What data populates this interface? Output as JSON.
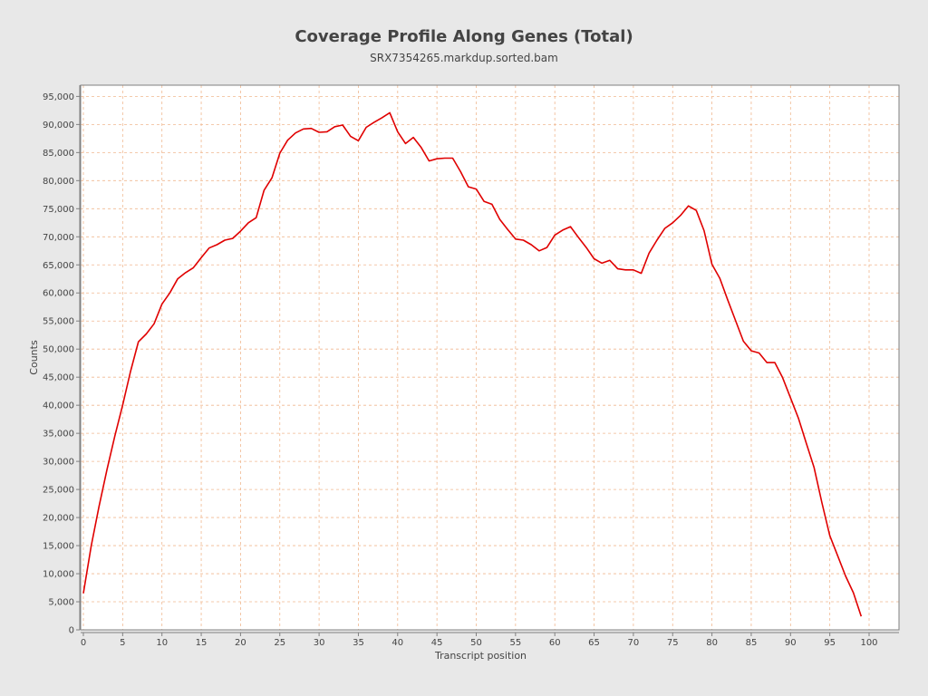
{
  "chart_data": {
    "type": "line",
    "title": "Coverage Profile Along Genes (Total)",
    "subtitle": "SRX7354265.markdup.sorted.bam",
    "xlabel": "Transcript position",
    "ylabel": "Counts",
    "xlim": [
      0,
      104
    ],
    "ylim": [
      0,
      97000
    ],
    "x_ticks": [
      0,
      5,
      10,
      15,
      20,
      25,
      30,
      35,
      40,
      45,
      50,
      55,
      60,
      65,
      70,
      75,
      80,
      85,
      90,
      95,
      100
    ],
    "y_ticks": [
      0,
      5000,
      10000,
      15000,
      20000,
      25000,
      30000,
      35000,
      40000,
      45000,
      50000,
      55000,
      60000,
      65000,
      70000,
      75000,
      80000,
      85000,
      90000,
      95000
    ],
    "y_tick_labels": [
      "0",
      "5,000",
      "10,000",
      "15,000",
      "20,000",
      "25,000",
      "30,000",
      "35,000",
      "40,000",
      "45,000",
      "50,000",
      "55,000",
      "60,000",
      "65,000",
      "70,000",
      "75,000",
      "80,000",
      "85,000",
      "90,000",
      "95,000"
    ],
    "grid": true,
    "grid_color": "#f0b890",
    "plot_background": "#ffffff",
    "series": [
      {
        "color": "#e00000",
        "x": [
          0,
          1,
          2,
          3,
          4,
          5,
          6,
          7,
          8,
          9,
          10,
          11,
          12,
          13,
          14,
          15,
          16,
          17,
          18,
          19,
          20,
          21,
          22,
          23,
          24,
          25,
          26,
          27,
          28,
          29,
          30,
          31,
          32,
          33,
          34,
          35,
          36,
          37,
          38,
          39,
          40,
          41,
          42,
          43,
          44,
          45,
          46,
          47,
          48,
          49,
          50,
          51,
          52,
          53,
          54,
          55,
          56,
          57,
          58,
          59,
          60,
          61,
          62,
          63,
          64,
          65,
          66,
          67,
          68,
          69,
          70,
          71,
          72,
          73,
          74,
          75,
          76,
          77,
          78,
          79,
          80,
          81,
          82,
          83,
          84,
          85,
          86,
          87,
          88,
          89,
          90,
          91,
          92,
          93,
          94,
          95,
          96,
          97,
          98,
          99
        ],
        "values": [
          6500,
          15000,
          22000,
          28500,
          34500,
          40000,
          46000,
          51300,
          52700,
          54500,
          58000,
          60000,
          62500,
          63600,
          64500,
          66300,
          68000,
          68600,
          69400,
          69700,
          71000,
          72500,
          73400,
          78300,
          80500,
          84900,
          87200,
          88500,
          89200,
          89300,
          88600,
          88700,
          89600,
          89900,
          87900,
          87100,
          89500,
          90400,
          91200,
          92100,
          88700,
          86600,
          87700,
          85900,
          83500,
          83900,
          84000,
          84000,
          81600,
          78900,
          78500,
          76300,
          75800,
          73100,
          71300,
          69600,
          69400,
          68600,
          67500,
          68100,
          70300,
          71200,
          71800,
          69900,
          68100,
          66100,
          65300,
          65800,
          64300,
          64100,
          64100,
          63500,
          67100,
          69400,
          71500,
          72500,
          73800,
          75500,
          74700,
          71100,
          65100,
          62600,
          58800,
          55100,
          51400,
          49700,
          49300,
          47600,
          47600,
          44900,
          41300,
          37700,
          33300,
          28900,
          22600,
          16800,
          13200,
          9600,
          6600,
          2400
        ]
      }
    ]
  }
}
